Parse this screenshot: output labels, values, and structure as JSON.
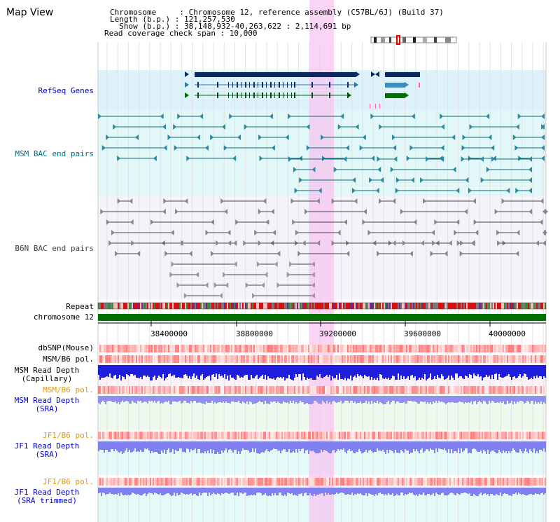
{
  "header": {
    "title": "Map View",
    "info_lines": [
      "Chromosome     : Chromosome 12, reference assembly (C57BL/6J) (Build 37)",
      "Length (b.p.) : 121,257,530",
      "  Show (b.p.) : 38,148,932-40,263,622 : 2,114,691 bp",
      "Read coverage check span : 10,000"
    ]
  },
  "tracks": {
    "refseq": "RefSeq Genes",
    "msm_bac": "MSM BAC end pairs",
    "b6n_bac": "B6N BAC end pairs",
    "repeat": "Repeat",
    "chromosome": "chromosome 12",
    "dbsnp": "dbSNP(Mouse)",
    "msm_b6_pol_1": "MSM/B6 pol.",
    "msm_depth_cap_1": "MSM Read Depth",
    "msm_depth_cap_2": "(Capillary)",
    "msm_b6_pol_2": "MSM/B6 pol.",
    "msm_depth_sra_1": "MSM Read Depth",
    "msm_depth_sra_2": "(SRA)",
    "jf1_b6_pol_1": "JF1/B6 pol.",
    "jf1_depth_sra_1": "JF1 Read Depth",
    "jf1_depth_sra_2": "(SRA)",
    "jf1_b6_pol_2": "JF1/B6 pol.",
    "jf1_depth_trim_1": "JF1 Read Depth",
    "jf1_depth_trim_2": "(SRA trimmed)"
  },
  "axis": {
    "ticks": [
      "38400000",
      "38800000",
      "39200000",
      "39600000",
      "40000000"
    ]
  },
  "colors": {
    "refseq_label": "#0000cc",
    "msm_bac_label": "#006c80",
    "b6n_bac_label": "#404040",
    "pol_orange": "#e39a00",
    "depth_blue": "#0000cc",
    "highlight": "#f7c6f2",
    "chromosome_green": "#007000"
  }
}
